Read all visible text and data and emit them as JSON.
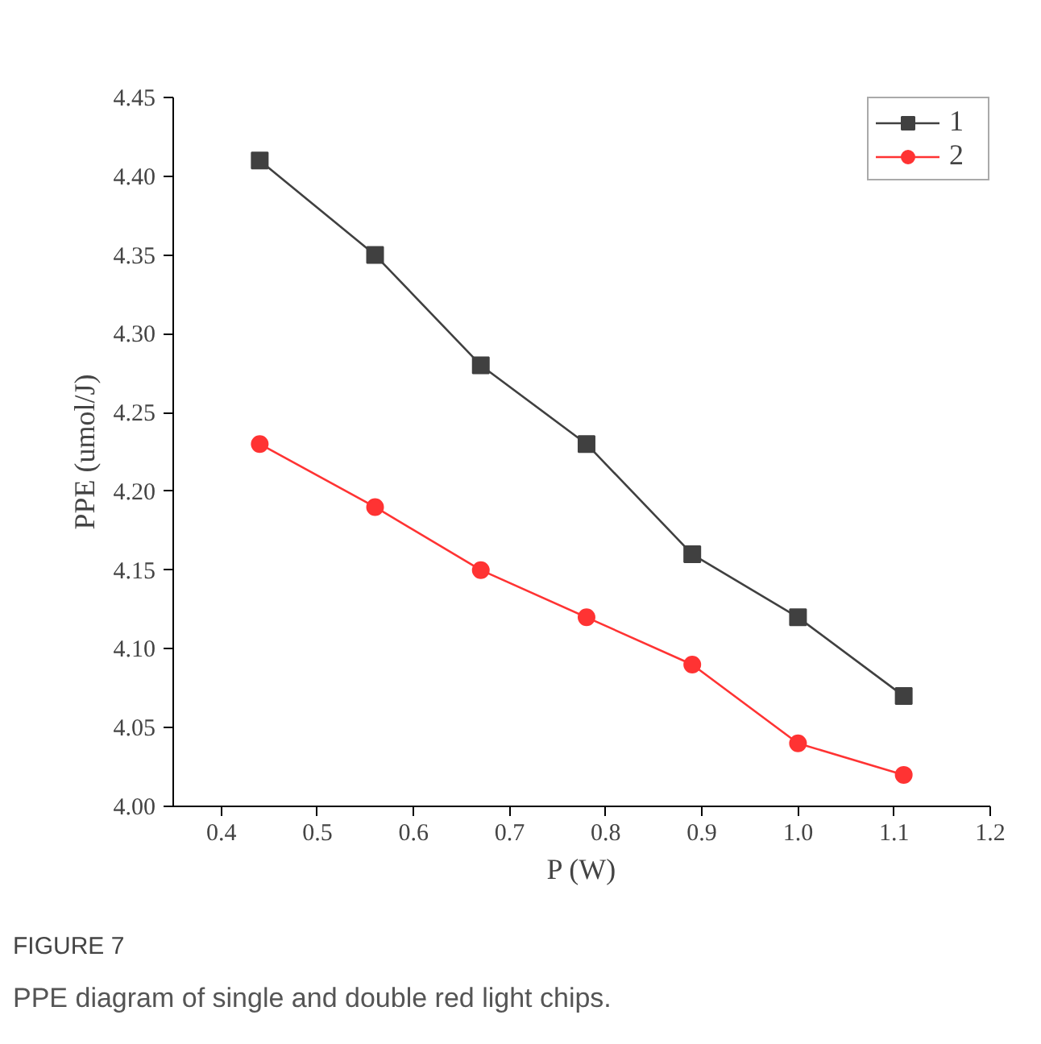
{
  "chart_data": {
    "type": "line",
    "xlabel": "P (W)",
    "ylabel": "PPE (umol/J)",
    "x": [
      0.44,
      0.56,
      0.67,
      0.78,
      0.89,
      1.0,
      1.11
    ],
    "series": [
      {
        "name": "1",
        "color": "#404040",
        "marker": "square",
        "values": [
          4.41,
          4.35,
          4.28,
          4.23,
          4.16,
          4.12,
          4.07
        ]
      },
      {
        "name": "2",
        "color": "#ff3333",
        "marker": "circle",
        "values": [
          4.23,
          4.19,
          4.15,
          4.12,
          4.09,
          4.04,
          4.02
        ]
      }
    ],
    "xlim": [
      0.35,
      1.2
    ],
    "xticks": [
      {
        "value": 0.4,
        "label": "0.4"
      },
      {
        "value": 0.5,
        "label": "0.5"
      },
      {
        "value": 0.6,
        "label": "0.6"
      },
      {
        "value": 0.7,
        "label": "0.7"
      },
      {
        "value": 0.8,
        "label": "0.8"
      },
      {
        "value": 0.9,
        "label": "0.9"
      },
      {
        "value": 1.0,
        "label": "1.0"
      },
      {
        "value": 1.1,
        "label": "1.1"
      },
      {
        "value": 1.2,
        "label": "1.2"
      }
    ],
    "ylim": [
      4.0,
      4.45
    ],
    "yticks": [
      {
        "value": 4.0,
        "label": "4.00"
      },
      {
        "value": 4.05,
        "label": "4.05"
      },
      {
        "value": 4.1,
        "label": "4.10"
      },
      {
        "value": 4.15,
        "label": "4.15"
      },
      {
        "value": 4.2,
        "label": "4.20"
      },
      {
        "value": 4.25,
        "label": "4.25"
      },
      {
        "value": 4.3,
        "label": "4.30"
      },
      {
        "value": 4.35,
        "label": "4.35"
      },
      {
        "value": 4.4,
        "label": "4.40"
      },
      {
        "value": 4.45,
        "label": "4.45"
      }
    ],
    "grid": false,
    "legend": "top right",
    "line_style": "solid",
    "annotations": [
      "FIGURE 7",
      "PPE diagram of single and double red light chips."
    ]
  }
}
